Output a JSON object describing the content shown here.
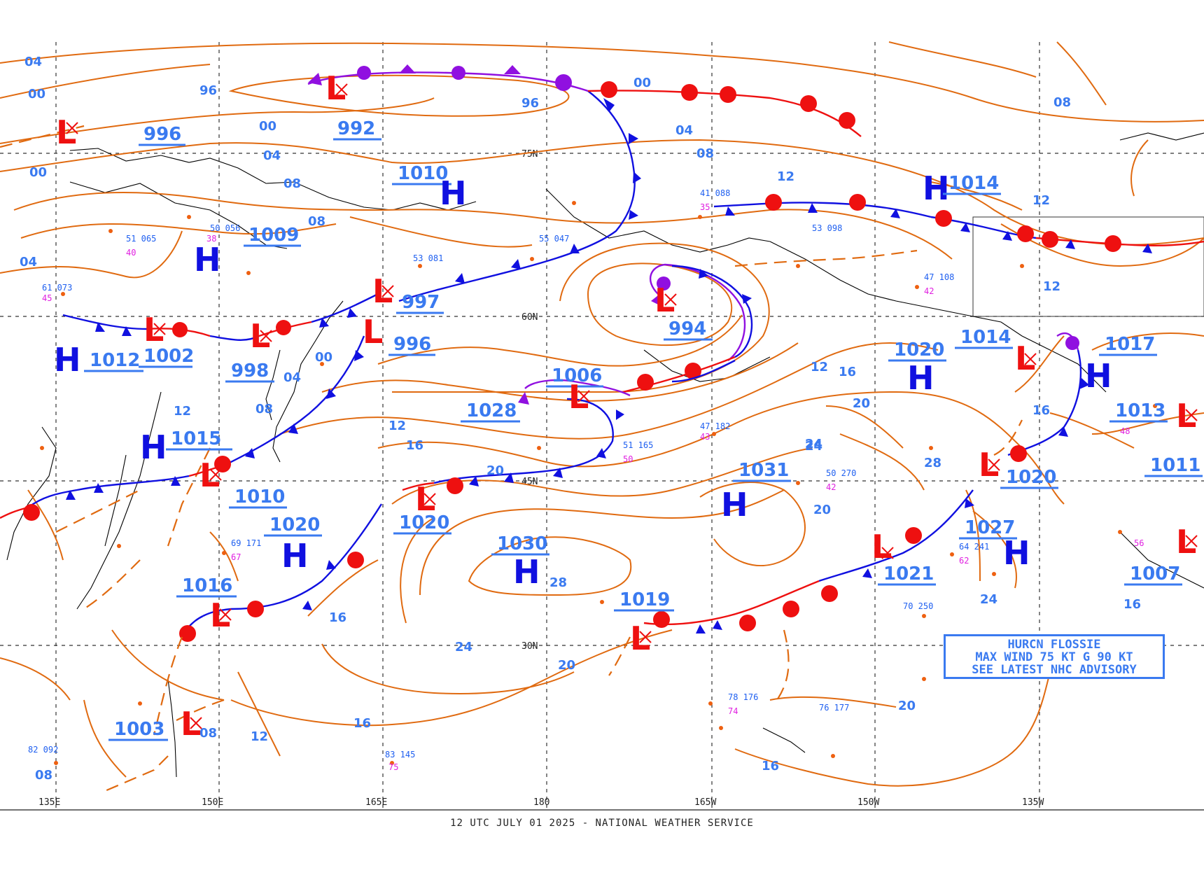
{
  "footer": "12 UTC JULY 01 2025 - NATIONAL WEATHER SERVICE",
  "advisory": {
    "line1": "HURCN FLOSSIE",
    "line2": "MAX WIND 75 KT G 90 KT",
    "line3": "SEE LATEST NHC ADVISORY"
  },
  "longitude_labels": [
    "135E",
    "150E",
    "165E",
    "180",
    "165W",
    "150W",
    "135W"
  ],
  "latitude_labels": [
    "75N",
    "60N",
    "45N",
    "30N"
  ],
  "pressure_systems": [
    {
      "type": "L",
      "value": "996"
    },
    {
      "type": "L",
      "value": "992"
    },
    {
      "type": "H",
      "value": "1010"
    },
    {
      "type": "H",
      "value": "1009"
    },
    {
      "type": "H",
      "value": "1012"
    },
    {
      "type": "L",
      "value": "1002"
    },
    {
      "type": "L",
      "value": "998"
    },
    {
      "type": "L",
      "value": "997"
    },
    {
      "type": "L",
      "value": "996"
    },
    {
      "type": "L",
      "value": "994"
    },
    {
      "type": "L",
      "value": "1006"
    },
    {
      "type": "H",
      "value": "1028"
    },
    {
      "type": "H",
      "value": "1015"
    },
    {
      "type": "L",
      "value": "1010"
    },
    {
      "type": "H",
      "value": "1020"
    },
    {
      "type": "L",
      "value": "1020"
    },
    {
      "type": "H",
      "value": "1030"
    },
    {
      "type": "L",
      "value": "1016"
    },
    {
      "type": "L",
      "value": "1019"
    },
    {
      "type": "H",
      "value": "1031"
    },
    {
      "type": "H",
      "value": "1014"
    },
    {
      "type": "L",
      "value": "1014"
    },
    {
      "type": "H",
      "value": "1020"
    },
    {
      "type": "H",
      "value": "1017"
    },
    {
      "type": "L",
      "value": "1020"
    },
    {
      "type": "H",
      "value": "1027"
    },
    {
      "type": "L",
      "value": "1021"
    },
    {
      "type": "L",
      "value": "1013"
    },
    {
      "type": "L",
      "value": "1011"
    },
    {
      "type": "L",
      "value": "1007"
    },
    {
      "type": "L",
      "value": "1003"
    },
    {
      "type": "L",
      "value": "08"
    }
  ],
  "isobar_labels": [
    "04",
    "00",
    "96",
    "00",
    "04",
    "08",
    "00",
    "04",
    "08",
    "96",
    "00",
    "04",
    "08",
    "12",
    "16",
    "20",
    "24",
    "28",
    "20",
    "16",
    "12",
    "08",
    "04",
    "00",
    "12",
    "16",
    "20",
    "24",
    "28",
    "20",
    "24",
    "16",
    "12",
    "08",
    "12",
    "16",
    "20",
    "24",
    "12",
    "16",
    "20",
    "08",
    "12",
    "16"
  ],
  "colors": {
    "isobar": "#e06a10",
    "cold_front": "#1010e0",
    "warm_front": "#ee1010",
    "occluded_front": "#9010e0",
    "label_blue": "#3a7af0"
  }
}
